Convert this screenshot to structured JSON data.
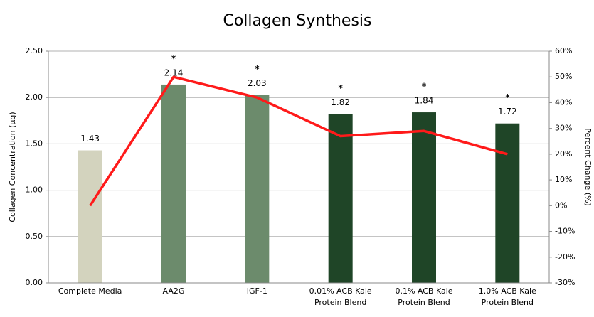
{
  "chart_data": {
    "type": "bar",
    "title": "Collagen Synthesis",
    "ylabel": "Collagen Concentration (µg)",
    "y2label": "Percent Change (%)",
    "categories": [
      "Complete Media",
      "AA2G",
      "IGF-1",
      "0.01% ACB Kale\nProtein Blend",
      "0.1% ACB Kale\nProtein Blend",
      "1.0% ACB Kale\nProtein Blend"
    ],
    "series": [
      {
        "name": "Collagen Concentration",
        "type": "bar",
        "values": [
          1.43,
          2.14,
          2.03,
          1.82,
          1.84,
          1.72
        ],
        "colors": [
          "#d3d3be",
          "#6c8b6c",
          "#6c8b6c",
          "#1f4527",
          "#1f4527",
          "#1f4527"
        ]
      },
      {
        "name": "Percent Change",
        "type": "line",
        "axis": "y2",
        "color": "#ff1a1a",
        "values": [
          0,
          50,
          42,
          27,
          29,
          20
        ]
      }
    ],
    "significance": [
      null,
      "*",
      "*",
      "*",
      "*",
      "*"
    ],
    "ylim": [
      0,
      2.5
    ],
    "yticks": [
      {
        "value": 0,
        "label": "0.00"
      },
      {
        "value": 0.5,
        "label": "0.50"
      },
      {
        "value": 1,
        "label": "1.00"
      },
      {
        "value": 1.5,
        "label": "1.50"
      },
      {
        "value": 2,
        "label": "2.00"
      },
      {
        "value": 2.5,
        "label": "2.50"
      }
    ],
    "y2lim": [
      -30,
      60
    ],
    "y2ticks": [
      {
        "value": -30,
        "label": "-30%"
      },
      {
        "value": -20,
        "label": "-20%"
      },
      {
        "value": -10,
        "label": "-10%"
      },
      {
        "value": 0,
        "label": "0%"
      },
      {
        "value": 10,
        "label": "10%"
      },
      {
        "value": 20,
        "label": "20%"
      },
      {
        "value": 30,
        "label": "30%"
      },
      {
        "value": 40,
        "label": "40%"
      },
      {
        "value": 50,
        "label": "50%"
      },
      {
        "value": 60,
        "label": "60%"
      }
    ],
    "grid": true
  }
}
